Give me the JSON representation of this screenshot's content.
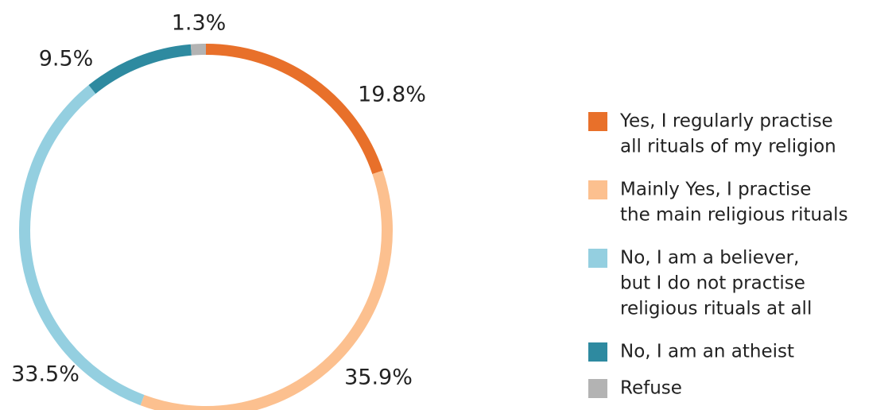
{
  "chart_data": {
    "type": "donut",
    "categories": [
      [
        "Yes, I regularly practise",
        "all rituals of my religion"
      ],
      [
        "Mainly Yes, I practise",
        "the main religious rituals"
      ],
      [
        "No, I am a believer,",
        "but I do not practise",
        "religious rituals at all"
      ],
      [
        "No, I am an atheist"
      ],
      [
        "Refuse"
      ]
    ],
    "values": [
      19.8,
      35.9,
      33.5,
      9.5,
      1.3
    ],
    "value_labels": [
      "19.8%",
      "35.9%",
      "33.5%",
      "9.5%",
      "1.3%"
    ],
    "colors": [
      "#e8702a",
      "#fcc08f",
      "#94cfe0",
      "#2e8aa0",
      "#b3b3b3"
    ],
    "legend": "right"
  }
}
